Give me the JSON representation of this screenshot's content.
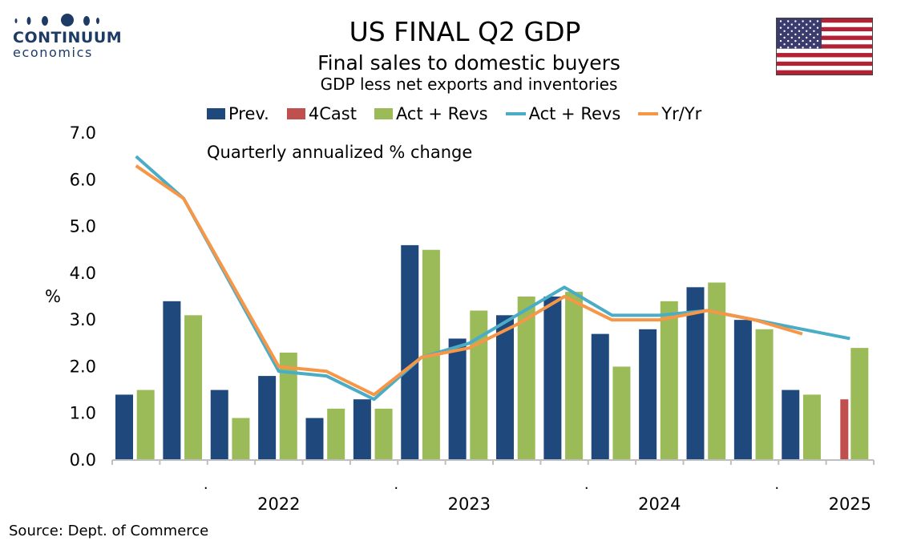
{
  "logo": {
    "name": "CONTINUUM",
    "sub": "economics"
  },
  "header": {
    "title": "US FINAL Q2  GDP",
    "subtitle": "Final sales to domestic buyers",
    "subtitle2": "GDP less net exports and inventories"
  },
  "note": "Quarterly annualized % change",
  "source": "Source: Dept. of Commerce",
  "legend": {
    "prev": "Prev.",
    "forecast": "4Cast",
    "act_bar": "Act + Revs",
    "act_line": "Act + Revs",
    "yoy": "Yr/Yr"
  },
  "colors": {
    "prev": "#1f497d",
    "forecast": "#c0504d",
    "act_bar": "#9bbb59",
    "act_line": "#4bacc6",
    "yoy": "#f79646",
    "axis": "#bfbfbf",
    "logo": "#1e3b66"
  },
  "chart_data": {
    "type": "bar",
    "ylabel": "%",
    "ylim": [
      0,
      7
    ],
    "yticks": [
      "0.0",
      "1.0",
      "2.0",
      "3.0",
      "4.0",
      "5.0",
      "6.0",
      "7.0"
    ],
    "year_labels": [
      {
        "label": "2022",
        "quarter_index": 3.5
      },
      {
        "label": "2023",
        "quarter_index": 7.5
      },
      {
        "label": "2024",
        "quarter_index": 11.5
      },
      {
        "label": "2025",
        "quarter_index": 15.5
      }
    ],
    "quarters": 16,
    "series": [
      {
        "name": "Prev.",
        "kind": "bar",
        "values": [
          1.4,
          3.4,
          1.5,
          1.8,
          0.9,
          1.3,
          4.6,
          2.6,
          3.1,
          3.5,
          2.7,
          2.8,
          3.7,
          3.0,
          1.5,
          null
        ]
      },
      {
        "name": "4Cast",
        "kind": "bar",
        "values": [
          null,
          null,
          null,
          null,
          null,
          null,
          null,
          null,
          null,
          null,
          null,
          null,
          null,
          null,
          null,
          1.3
        ]
      },
      {
        "name": "Act + Revs",
        "kind": "bar",
        "values": [
          1.5,
          3.1,
          0.9,
          2.3,
          1.1,
          1.1,
          4.5,
          3.2,
          3.5,
          3.6,
          2.0,
          3.4,
          3.8,
          2.8,
          1.4,
          2.4
        ]
      },
      {
        "name": "Act + Revs",
        "kind": "line",
        "values": [
          6.5,
          5.6,
          null,
          1.9,
          1.8,
          1.3,
          2.2,
          2.5,
          3.1,
          3.7,
          3.1,
          3.1,
          3.2,
          3.0,
          2.8,
          2.6
        ]
      },
      {
        "name": "Yr/Yr",
        "kind": "line",
        "values": [
          6.3,
          5.6,
          null,
          2.0,
          1.9,
          1.4,
          2.2,
          2.4,
          2.9,
          3.5,
          3.0,
          3.0,
          3.2,
          3.0,
          2.7,
          null
        ]
      }
    ]
  }
}
